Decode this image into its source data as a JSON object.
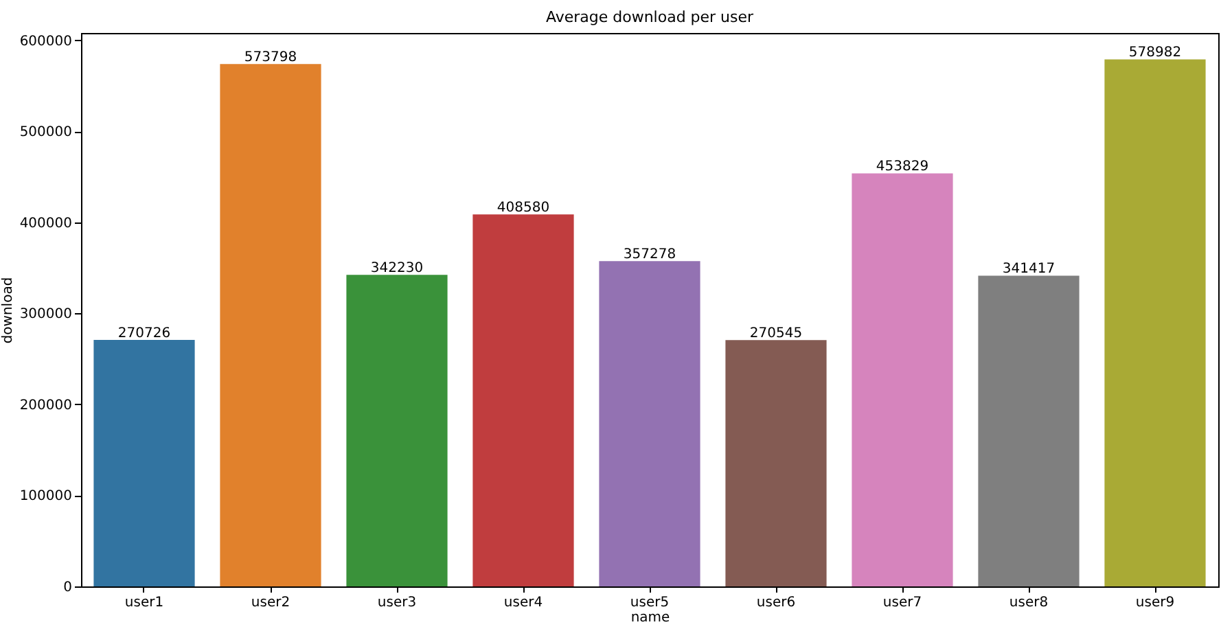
{
  "chart_data": {
    "type": "bar",
    "title": "Average download per user",
    "xlabel": "name",
    "ylabel": "download",
    "categories": [
      "user1",
      "user2",
      "user3",
      "user4",
      "user5",
      "user6",
      "user7",
      "user8",
      "user9"
    ],
    "values": [
      270726,
      573798,
      342230,
      408580,
      357278,
      270545,
      453829,
      341417,
      578982
    ],
    "colors": [
      "#3274a1",
      "#e1812c",
      "#3a923a",
      "#c03d3e",
      "#9372b2",
      "#845b53",
      "#d684bd",
      "#7f7f7f",
      "#a9aa35"
    ],
    "ylim": [
      0,
      608000
    ],
    "yticks": [
      0,
      100000,
      200000,
      300000,
      400000,
      500000,
      600000
    ],
    "grid": false,
    "data_labels": true
  }
}
